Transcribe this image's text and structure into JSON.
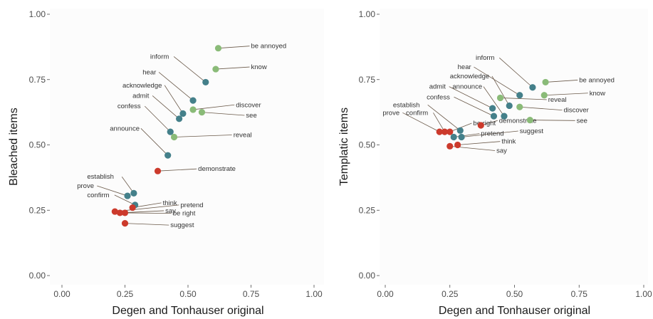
{
  "colors": {
    "green": "#8abb78",
    "teal": "#44808a",
    "red": "#cc3a2c"
  },
  "chart_data": [
    {
      "type": "scatter",
      "title": "",
      "xlabel": "Degen and Tonhauser original",
      "ylabel": "Bleached items",
      "xlim": [
        0,
        1
      ],
      "ylim": [
        0,
        1
      ],
      "xticks": [
        "0.00",
        "0.25",
        "0.50",
        "0.75",
        "1.00"
      ],
      "yticks": [
        "0.00",
        "0.25",
        "0.50",
        "0.75",
        "1.00"
      ],
      "grid": false,
      "points": [
        {
          "label": "be annoyed",
          "x": 0.62,
          "y": 0.87,
          "group": "green"
        },
        {
          "label": "know",
          "x": 0.61,
          "y": 0.79,
          "group": "green"
        },
        {
          "label": "discover",
          "x": 0.52,
          "y": 0.635,
          "group": "green"
        },
        {
          "label": "see",
          "x": 0.555,
          "y": 0.625,
          "group": "green"
        },
        {
          "label": "reveal",
          "x": 0.445,
          "y": 0.53,
          "group": "green"
        },
        {
          "label": "inform",
          "x": 0.57,
          "y": 0.74,
          "group": "teal"
        },
        {
          "label": "hear",
          "x": 0.52,
          "y": 0.67,
          "group": "teal"
        },
        {
          "label": "acknowledge",
          "x": 0.48,
          "y": 0.62,
          "group": "teal"
        },
        {
          "label": "admit",
          "x": 0.465,
          "y": 0.6,
          "group": "teal"
        },
        {
          "label": "confess",
          "x": 0.43,
          "y": 0.55,
          "group": "teal"
        },
        {
          "label": "announce",
          "x": 0.42,
          "y": 0.46,
          "group": "teal"
        },
        {
          "label": "establish",
          "x": 0.285,
          "y": 0.315,
          "group": "teal"
        },
        {
          "label": "prove",
          "x": 0.26,
          "y": 0.305,
          "group": "teal"
        },
        {
          "label": "confirm",
          "x": 0.29,
          "y": 0.27,
          "group": "teal"
        },
        {
          "label": "demonstrate",
          "x": 0.38,
          "y": 0.4,
          "group": "red"
        },
        {
          "label": "think",
          "x": 0.28,
          "y": 0.26,
          "group": "red"
        },
        {
          "label": "pretend",
          "x": 0.21,
          "y": 0.245,
          "group": "red"
        },
        {
          "label": "say",
          "x": 0.23,
          "y": 0.24,
          "group": "red"
        },
        {
          "label": "be right",
          "x": 0.25,
          "y": 0.24,
          "group": "red"
        },
        {
          "label": "suggest",
          "x": 0.25,
          "y": 0.2,
          "group": "red"
        }
      ]
    },
    {
      "type": "scatter",
      "title": "",
      "xlabel": "Degen and Tonhauser original",
      "ylabel": "Templatic items",
      "xlim": [
        0,
        1
      ],
      "ylim": [
        0,
        1
      ],
      "xticks": [
        "0.00",
        "0.25",
        "0.50",
        "0.75",
        "1.00"
      ],
      "yticks": [
        "0.00",
        "0.25",
        "0.50",
        "0.75",
        "1.00"
      ],
      "grid": false,
      "points": [
        {
          "label": "be annoyed",
          "x": 0.62,
          "y": 0.74,
          "group": "green"
        },
        {
          "label": "know",
          "x": 0.615,
          "y": 0.69,
          "group": "green"
        },
        {
          "label": "reveal",
          "x": 0.445,
          "y": 0.68,
          "group": "green"
        },
        {
          "label": "discover",
          "x": 0.52,
          "y": 0.645,
          "group": "green"
        },
        {
          "label": "see",
          "x": 0.56,
          "y": 0.595,
          "group": "green"
        },
        {
          "label": "inform",
          "x": 0.57,
          "y": 0.72,
          "group": "teal"
        },
        {
          "label": "hear",
          "x": 0.52,
          "y": 0.69,
          "group": "teal"
        },
        {
          "label": "acknowledge",
          "x": 0.48,
          "y": 0.65,
          "group": "teal"
        },
        {
          "label": "admit",
          "x": 0.415,
          "y": 0.64,
          "group": "teal"
        },
        {
          "label": "announce",
          "x": 0.46,
          "y": 0.61,
          "group": "teal"
        },
        {
          "label": "confess",
          "x": 0.42,
          "y": 0.61,
          "group": "teal"
        },
        {
          "label": "establish",
          "x": 0.29,
          "y": 0.555,
          "group": "teal"
        },
        {
          "label": "pretend",
          "x": 0.265,
          "y": 0.53,
          "group": "teal"
        },
        {
          "label": "suggest",
          "x": 0.295,
          "y": 0.53,
          "group": "teal"
        },
        {
          "label": "demonstrate",
          "x": 0.37,
          "y": 0.575,
          "group": "red"
        },
        {
          "label": "be right",
          "x": 0.25,
          "y": 0.55,
          "group": "red"
        },
        {
          "label": "prove",
          "x": 0.21,
          "y": 0.55,
          "group": "red"
        },
        {
          "label": "confirm",
          "x": 0.23,
          "y": 0.55,
          "group": "red"
        },
        {
          "label": "think",
          "x": 0.28,
          "y": 0.5,
          "group": "red"
        },
        {
          "label": "say",
          "x": 0.25,
          "y": 0.495,
          "group": "red"
        }
      ]
    }
  ],
  "labels": {
    "left": [
      {
        "label": "be annoyed",
        "lx": 0.75,
        "ly": 0.87
      },
      {
        "label": "know",
        "lx": 0.75,
        "ly": 0.79
      },
      {
        "label": "inform",
        "lx": 0.35,
        "ly": 0.83
      },
      {
        "label": "hear",
        "lx": 0.32,
        "ly": 0.77
      },
      {
        "label": "acknowledge",
        "lx": 0.24,
        "ly": 0.72
      },
      {
        "label": "admit",
        "lx": 0.28,
        "ly": 0.68
      },
      {
        "label": "confess",
        "lx": 0.22,
        "ly": 0.64
      },
      {
        "label": "discover",
        "lx": 0.69,
        "ly": 0.645
      },
      {
        "label": "see",
        "lx": 0.73,
        "ly": 0.605
      },
      {
        "label": "announce",
        "lx": 0.19,
        "ly": 0.555
      },
      {
        "label": "reveal",
        "lx": 0.68,
        "ly": 0.53
      },
      {
        "label": "demonstrate",
        "lx": 0.54,
        "ly": 0.4
      },
      {
        "label": "establish",
        "lx": 0.1,
        "ly": 0.37
      },
      {
        "label": "prove",
        "lx": 0.06,
        "ly": 0.335
      },
      {
        "label": "confirm",
        "lx": 0.1,
        "ly": 0.3
      },
      {
        "label": "think",
        "lx": 0.4,
        "ly": 0.27
      },
      {
        "label": "pretend",
        "lx": 0.47,
        "ly": 0.262
      },
      {
        "label": "say",
        "lx": 0.41,
        "ly": 0.24
      },
      {
        "label": "be right",
        "lx": 0.44,
        "ly": 0.23
      },
      {
        "label": "suggest",
        "lx": 0.43,
        "ly": 0.185
      }
    ],
    "right": [
      {
        "label": "inform",
        "lx": 0.35,
        "ly": 0.825
      },
      {
        "label": "hear",
        "lx": 0.28,
        "ly": 0.79
      },
      {
        "label": "acknowledge",
        "lx": 0.25,
        "ly": 0.755
      },
      {
        "label": "admit",
        "lx": 0.17,
        "ly": 0.715
      },
      {
        "label": "announce",
        "lx": 0.26,
        "ly": 0.715
      },
      {
        "label": "confess",
        "lx": 0.16,
        "ly": 0.675
      },
      {
        "label": "be annoyed",
        "lx": 0.75,
        "ly": 0.74
      },
      {
        "label": "know",
        "lx": 0.79,
        "ly": 0.69
      },
      {
        "label": "reveal",
        "lx": 0.63,
        "ly": 0.665
      },
      {
        "label": "discover",
        "lx": 0.69,
        "ly": 0.625
      },
      {
        "label": "see",
        "lx": 0.74,
        "ly": 0.585
      },
      {
        "label": "establish",
        "lx": 0.03,
        "ly": 0.645
      },
      {
        "label": "prove",
        "lx": -0.01,
        "ly": 0.615
      },
      {
        "label": "confirm",
        "lx": 0.08,
        "ly": 0.615
      },
      {
        "label": "be right",
        "lx": 0.34,
        "ly": 0.575
      },
      {
        "label": "demonstrate",
        "lx": 0.44,
        "ly": 0.585
      },
      {
        "label": "pretend",
        "lx": 0.37,
        "ly": 0.535
      },
      {
        "label": "suggest",
        "lx": 0.52,
        "ly": 0.545
      },
      {
        "label": "think",
        "lx": 0.45,
        "ly": 0.505
      },
      {
        "label": "say",
        "lx": 0.43,
        "ly": 0.47
      }
    ]
  }
}
